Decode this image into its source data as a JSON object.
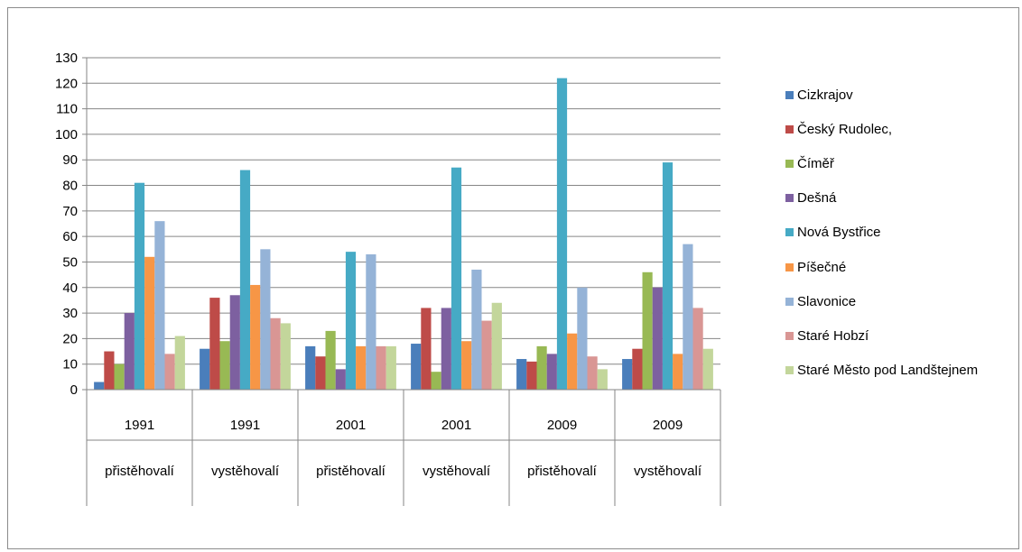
{
  "chart_data": {
    "type": "bar",
    "ylim": [
      0,
      130
    ],
    "yticks": [
      0,
      10,
      20,
      30,
      40,
      50,
      60,
      70,
      80,
      90,
      100,
      110,
      120,
      130
    ],
    "grid": true,
    "legend_position": "right",
    "categories": [
      {
        "year": "1991",
        "kind": "přistěhovalí"
      },
      {
        "year": "1991",
        "kind": "vystěhovalí"
      },
      {
        "year": "2001",
        "kind": "přistěhovalí"
      },
      {
        "year": "2001",
        "kind": "vystěhovalí"
      },
      {
        "year": "2009",
        "kind": "přistěhovalí"
      },
      {
        "year": "2009",
        "kind": "vystěhovalí"
      }
    ],
    "series": [
      {
        "name": "Cizkrajov",
        "color": "#4a7ebb",
        "values": [
          3,
          16,
          17,
          18,
          12,
          12
        ]
      },
      {
        "name": "Český Rudolec,",
        "color": "#be4b48",
        "values": [
          15,
          36,
          13,
          32,
          11,
          16
        ]
      },
      {
        "name": "Číměř",
        "color": "#98b954",
        "values": [
          10,
          19,
          23,
          7,
          17,
          46
        ]
      },
      {
        "name": "Dešná",
        "color": "#7d60a0",
        "values": [
          30,
          37,
          8,
          32,
          14,
          40
        ]
      },
      {
        "name": "Nová Bystřice",
        "color": "#46aac5",
        "values": [
          81,
          86,
          54,
          87,
          122,
          89
        ]
      },
      {
        "name": "Píšečné",
        "color": "#f79646",
        "values": [
          52,
          41,
          17,
          19,
          22,
          14
        ]
      },
      {
        "name": "Slavonice",
        "color": "#95b3d7",
        "values": [
          66,
          55,
          53,
          47,
          40,
          57
        ]
      },
      {
        "name": "Staré Hobzí",
        "color": "#d99694",
        "values": [
          14,
          28,
          17,
          27,
          13,
          32
        ]
      },
      {
        "name": "Staré Město pod Landštejnem",
        "color": "#c3d69b",
        "values": [
          21,
          26,
          17,
          34,
          8,
          16
        ]
      }
    ]
  }
}
